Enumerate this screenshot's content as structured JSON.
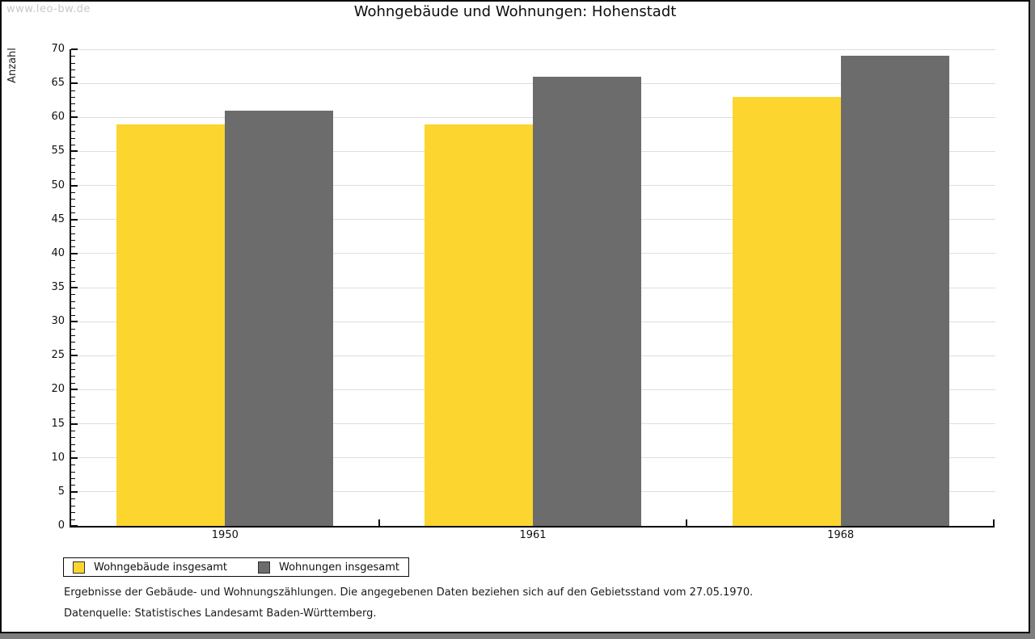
{
  "watermark": "www.leo-bw.de",
  "title": "Wohngebäude und Wohnungen: Hohenstadt",
  "chart_data": {
    "type": "bar",
    "title": "Wohngebäude und Wohnungen: Hohenstadt",
    "categories": [
      "1950",
      "1961",
      "1968"
    ],
    "series": [
      {
        "name": "Wohngebäude insgesamt",
        "color": "#FCD52F",
        "values": [
          59,
          59,
          63
        ]
      },
      {
        "name": "Wohnungen insgesamt",
        "color": "#6C6C6C",
        "values": [
          61,
          66,
          69
        ]
      }
    ],
    "xlabel": "",
    "ylabel": "Anzahl",
    "ylim": [
      0,
      70
    ],
    "y_ticks": [
      0,
      5,
      10,
      15,
      20,
      25,
      30,
      35,
      40,
      45,
      50,
      55,
      60,
      65,
      70
    ],
    "ytick_minor_step": 1,
    "grid": "horizontal-major",
    "legend_position": "bottom-left"
  },
  "legend_note": "legend labels bound from chart_data.series",
  "footer": {
    "line1": "Ergebnisse der Gebäude- und Wohnungszählungen. Die angegebenen Daten beziehen sich auf den Gebietsstand vom 27.05.1970.",
    "line2": "Datenquelle: Statistisches Landesamt Baden-Württemberg."
  },
  "colors": {
    "bar_yellow": "#FCD52F",
    "bar_gray": "#6C6C6C",
    "gridline": "#DEDEDE",
    "axis": "#0A0A0A",
    "watermark": "#C8C8C8",
    "frame": "#7D7D7D"
  }
}
